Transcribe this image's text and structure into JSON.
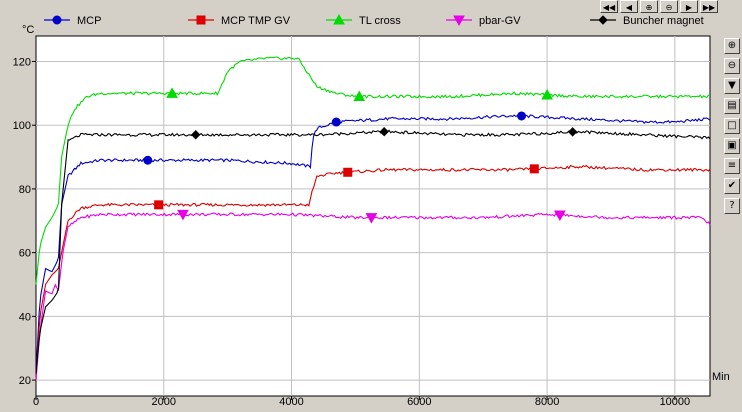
{
  "chart_data": {
    "type": "line",
    "title": "",
    "y_unit": "°C",
    "x_unit": "Min",
    "xlim": [
      0,
      10550
    ],
    "ylim": [
      15,
      128
    ],
    "x_ticks": [
      0,
      2000,
      4000,
      6000,
      8000,
      10000
    ],
    "y_ticks": [
      20,
      40,
      60,
      80,
      100,
      120
    ],
    "grid": true,
    "legend_position": "top",
    "series": [
      {
        "name": "MCP",
        "color": "#0000c8",
        "marker": "circle",
        "x": [
          0,
          60,
          150,
          250,
          350,
          400,
          500,
          700,
          1000,
          2000,
          3000,
          4000,
          4300,
          4330,
          4400,
          4700,
          5500,
          6500,
          7500,
          8500,
          9500,
          10000,
          10550
        ],
        "y": [
          22,
          45,
          55,
          54,
          58,
          75,
          84,
          88,
          89,
          89,
          89,
          88,
          87,
          96,
          99,
          101,
          102,
          102,
          103,
          102,
          101,
          101,
          102
        ],
        "marker_x": [
          1750,
          4700,
          7600
        ]
      },
      {
        "name": "MCP TMP GV",
        "color": "#dc0000",
        "marker": "square",
        "x": [
          0,
          60,
          150,
          250,
          350,
          420,
          500,
          700,
          1000,
          2000,
          3000,
          4000,
          4280,
          4320,
          4400,
          4700,
          5500,
          6500,
          7500,
          8500,
          9500,
          10000,
          10550
        ],
        "y": [
          20,
          40,
          50,
          53,
          55,
          62,
          70,
          74,
          75,
          75,
          75,
          75,
          75,
          79,
          84,
          85,
          86,
          86,
          86,
          87,
          86,
          86,
          86
        ],
        "marker_x": [
          1920,
          4880,
          7800
        ]
      },
      {
        "name": "TL cross",
        "color": "#00dc00",
        "marker": "triangle-up",
        "x": [
          0,
          60,
          150,
          250,
          350,
          400,
          500,
          600,
          800,
          1000,
          2000,
          2850,
          3000,
          3200,
          3600,
          4100,
          4400,
          4700,
          5000,
          5500,
          6500,
          7500,
          8500,
          9500,
          10550
        ],
        "y": [
          50,
          62,
          68,
          71,
          75,
          90,
          100,
          105,
          109,
          110,
          110,
          110,
          117,
          120,
          121,
          121,
          112,
          110,
          109,
          109,
          109,
          110,
          109,
          109,
          109
        ],
        "marker_x": [
          2130,
          5060,
          8000
        ]
      },
      {
        "name": "pbar-GV",
        "color": "#e600e6",
        "marker": "triangle-down",
        "x": [
          0,
          60,
          150,
          250,
          300,
          350,
          420,
          500,
          700,
          1000,
          2000,
          3000,
          4000,
          5000,
          6000,
          7000,
          8000,
          9000,
          10000,
          10400,
          10550
        ],
        "y": [
          20,
          35,
          48,
          47,
          50,
          48,
          60,
          68,
          71,
          72,
          72,
          72,
          72,
          71,
          71,
          71,
          72,
          71,
          71,
          71,
          69
        ],
        "marker_x": [
          2300,
          5250,
          8200
        ]
      },
      {
        "name": "Buncher magnet",
        "color": "#000000",
        "marker": "diamond",
        "x": [
          0,
          60,
          150,
          250,
          350,
          400,
          500,
          700,
          1000,
          2000,
          3000,
          4000,
          4300,
          4400,
          5500,
          6500,
          7500,
          8500,
          9500,
          10550
        ],
        "y": [
          22,
          35,
          43,
          45,
          48,
          75,
          95,
          97,
          97,
          97,
          97,
          97,
          97,
          97,
          98,
          97,
          97,
          98,
          97,
          96
        ],
        "marker_x": [
          2500,
          5450,
          8400
        ]
      }
    ]
  },
  "controls": {
    "nav_buttons": [
      {
        "name": "first-page-icon",
        "glyph": "◀◀"
      },
      {
        "name": "previous-page-icon",
        "glyph": "◀"
      },
      {
        "name": "zoom-in-icon",
        "glyph": "⊕"
      },
      {
        "name": "zoom-out-icon",
        "glyph": "⊖"
      },
      {
        "name": "next-page-icon",
        "glyph": "▶"
      },
      {
        "name": "last-page-icon",
        "glyph": "▶▶"
      }
    ],
    "tool_buttons": [
      {
        "name": "zoom-in-icon",
        "glyph": "⊕"
      },
      {
        "name": "zoom-out-icon",
        "glyph": "⊖"
      },
      {
        "name": "dropdown-arrow-icon",
        "glyph": "▼"
      },
      {
        "name": "open-file-icon",
        "glyph": "▤"
      },
      {
        "name": "window-icon",
        "glyph": "□"
      },
      {
        "name": "save-icon",
        "glyph": "▣"
      },
      {
        "name": "line-style-icon",
        "glyph": "≡"
      },
      {
        "name": "check-icon",
        "glyph": "✔"
      },
      {
        "name": "help-icon",
        "glyph": "?"
      }
    ]
  }
}
